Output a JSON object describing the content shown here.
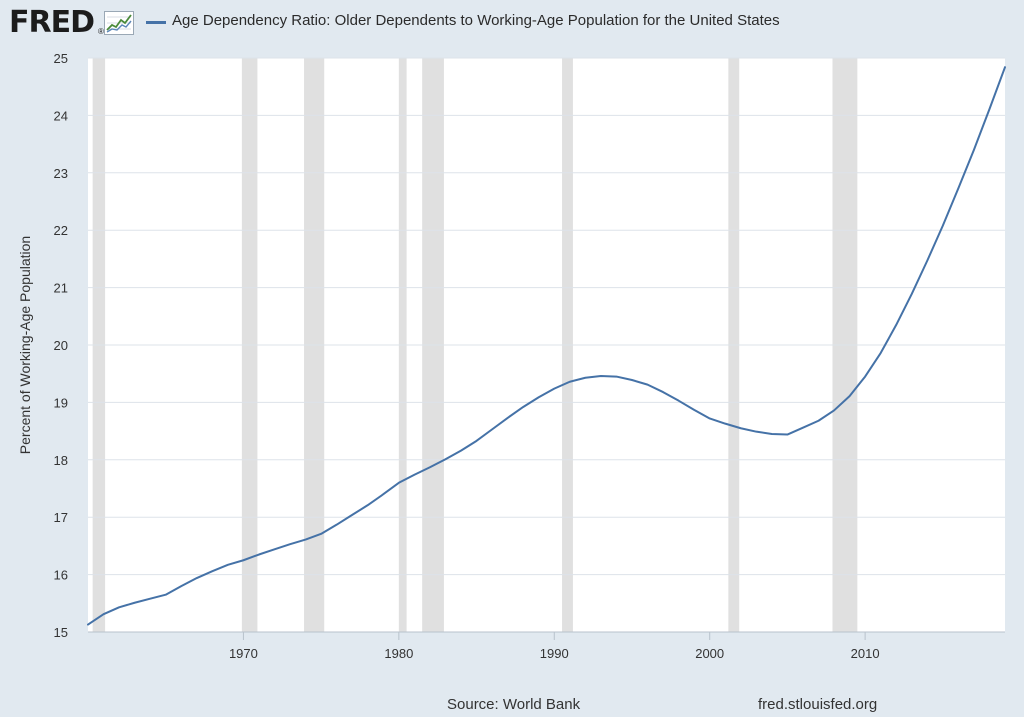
{
  "brand": {
    "logo_text": "FRED",
    "registered_mark": "®"
  },
  "legend": {
    "label": "Age Dependency Ratio: Older Dependents to Working-Age Population for the United States",
    "color": "#4572a7"
  },
  "footer": {
    "source": "Source: World Bank",
    "url": "fred.stlouisfed.org"
  },
  "colors": {
    "background": "#e1e9f0",
    "plot_bg": "#ffffff",
    "recession": "#e0e0e0",
    "gridline": "#dde3ea",
    "line": "#4572a7"
  },
  "chart_data": {
    "type": "line",
    "title": "Age Dependency Ratio: Older Dependents to Working-Age Population for the United States",
    "xlabel": "",
    "ylabel": "Percent of Working-Age Population",
    "xlim": [
      1960,
      2019
    ],
    "ylim": [
      15,
      25
    ],
    "grid": true,
    "x_ticks": [
      1970,
      1980,
      1990,
      2000,
      2010
    ],
    "y_ticks": [
      15,
      16,
      17,
      18,
      19,
      20,
      21,
      22,
      23,
      24,
      25
    ],
    "recessions": [
      [
        1960.3,
        1961.1
      ],
      [
        1969.9,
        1970.9
      ],
      [
        1973.9,
        1975.2
      ],
      [
        1980.0,
        1980.5
      ],
      [
        1981.5,
        1982.9
      ],
      [
        1990.5,
        1991.2
      ],
      [
        2001.2,
        2001.9
      ],
      [
        2007.9,
        2009.5
      ]
    ],
    "series": [
      {
        "name": "Age Dependency Ratio: Older Dependents to Working-Age Population for the United States",
        "x": [
          1960,
          1961,
          1962,
          1963,
          1964,
          1965,
          1966,
          1967,
          1968,
          1969,
          1970,
          1971,
          1972,
          1973,
          1974,
          1975,
          1976,
          1977,
          1978,
          1979,
          1980,
          1981,
          1982,
          1983,
          1984,
          1985,
          1986,
          1987,
          1988,
          1989,
          1990,
          1991,
          1992,
          1993,
          1994,
          1995,
          1996,
          1997,
          1998,
          1999,
          2000,
          2001,
          2002,
          2003,
          2004,
          2005,
          2006,
          2007,
          2008,
          2009,
          2010,
          2011,
          2012,
          2013,
          2014,
          2015,
          2016,
          2017,
          2018,
          2019
        ],
        "values": [
          15.13,
          15.31,
          15.43,
          15.51,
          15.58,
          15.65,
          15.8,
          15.94,
          16.06,
          16.17,
          16.25,
          16.35,
          16.44,
          16.53,
          16.61,
          16.71,
          16.87,
          17.04,
          17.21,
          17.4,
          17.6,
          17.74,
          17.87,
          18.01,
          18.16,
          18.33,
          18.53,
          18.73,
          18.92,
          19.09,
          19.24,
          19.36,
          19.43,
          19.46,
          19.45,
          19.39,
          19.31,
          19.18,
          19.03,
          18.87,
          18.72,
          18.63,
          18.55,
          18.49,
          18.45,
          18.44,
          18.56,
          18.68,
          18.86,
          19.11,
          19.45,
          19.86,
          20.35,
          20.89,
          21.47,
          22.08,
          22.73,
          23.4,
          24.11,
          24.84
        ]
      }
    ]
  }
}
